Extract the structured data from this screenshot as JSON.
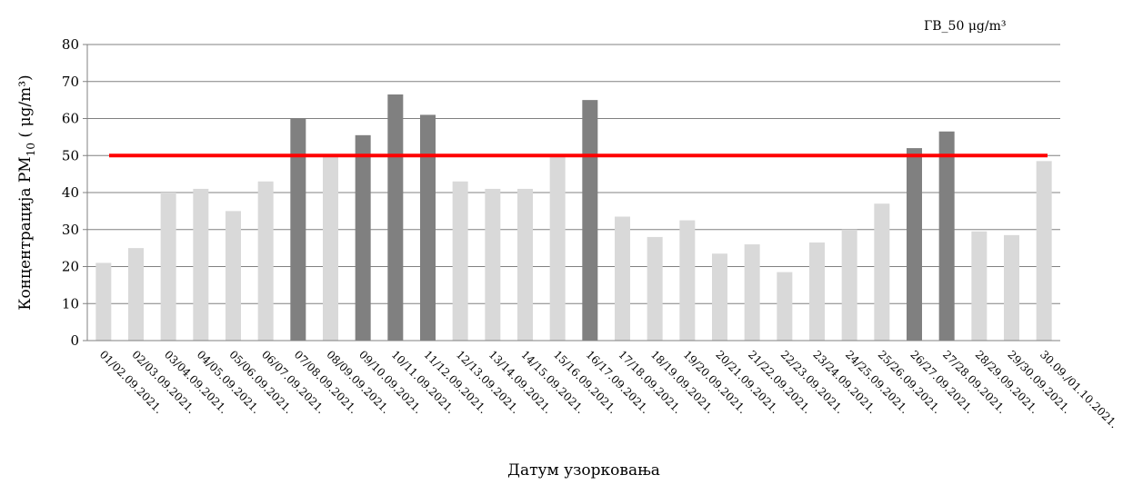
{
  "chart_data": {
    "type": "bar",
    "title": "",
    "xlabel": "Датум узорковања",
    "ylabel_main": "Концентрација  PM",
    "ylabel_sub": "10",
    "ylabel_unit": " ( μg/m³)",
    "ylim": [
      0,
      80
    ],
    "yticks": [
      0,
      10,
      20,
      30,
      40,
      50,
      60,
      70,
      80
    ],
    "grid": true,
    "limit": {
      "label": "ГВ_50  μg/m³",
      "value": 50,
      "color": "#ff0000"
    },
    "colors": {
      "below": "#d9d9d9",
      "above": "#808080",
      "grid": "#808080"
    },
    "categories": [
      "01/02.09.2021.",
      "02/03.09.2021.",
      "03/04.09.2021.",
      "04/05.09.2021.",
      "05/06.09.2021.",
      "06/07.09.2021.",
      "07/08.09.2021.",
      "08/09.09.2021.",
      "09/10.09.2021.",
      "10/11.09.2021.",
      "11/12.09.2021.",
      "12/13.09.2021.",
      "13/14.09.2021.",
      "14/15.09.2021.",
      "15/16.09.2021.",
      "16/17.09.2021.",
      "17/18.09.2021.",
      "18/19.09.2021.",
      "19/20.09.2021.",
      "20/21.09.2021.",
      "21/22.09.2021.",
      "22/23.09.2021.",
      "23/24.09.2021.",
      "24/25.09.2021.",
      "25/26.09.2021.",
      "26/27.09.2021.",
      "27/28.09.2021.",
      "28/29.09.2021.",
      "29/30.09.2021.",
      "30.09./01.10.2021."
    ],
    "values": [
      21,
      25,
      40,
      41,
      35,
      43,
      60,
      50,
      55.5,
      66.5,
      61,
      43,
      41,
      41,
      50,
      65,
      33.5,
      28,
      32.5,
      23.5,
      26,
      18.5,
      26.5,
      30,
      37,
      52,
      56.5,
      29.5,
      28.5,
      48.5
    ]
  }
}
